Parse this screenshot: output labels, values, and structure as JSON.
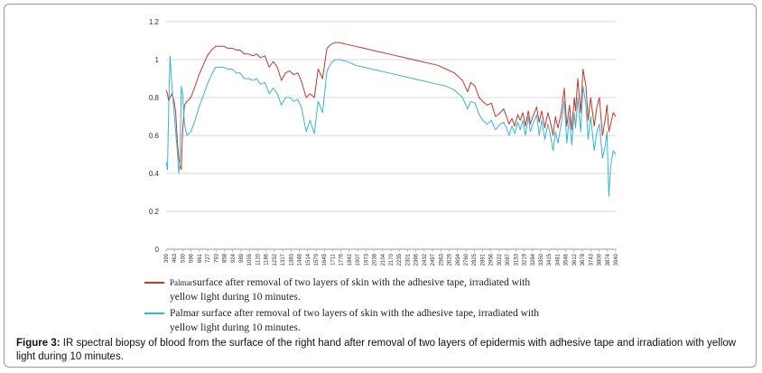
{
  "chart_data": {
    "type": "line",
    "title": "",
    "xlabel": "",
    "ylabel": "",
    "ylim": [
      0,
      1.2
    ],
    "yticks": [
      "0",
      "0.2",
      "0.4",
      "0.6",
      "0.8",
      "1",
      "1.2"
    ],
    "xticks": [
      "399",
      "463",
      "530",
      "596",
      "661",
      "727",
      "793",
      "858",
      "924",
      "989",
      "1055",
      "1120",
      "1186",
      "1252",
      "1317",
      "1383",
      "1448",
      "1514",
      "1579",
      "1645",
      "1711",
      "1776",
      "1842",
      "1907",
      "1973",
      "2038",
      "2104",
      "2170",
      "2235",
      "2301",
      "2366",
      "2432",
      "2497",
      "2563",
      "2629",
      "2694",
      "2760",
      "2825",
      "2891",
      "2956",
      "3022",
      "3087",
      "3153",
      "3219",
      "3284",
      "3350",
      "3415",
      "3481",
      "3546",
      "3612",
      "3678",
      "3743",
      "3809",
      "3874",
      "3940"
    ],
    "series": [
      {
        "name": "Palmar surface after removal of two layers of skin with the adhesive tape, irradiated with yellow light during 10 minutes.",
        "color": "#c0392b",
        "x": [
          399,
          410,
          420,
          430,
          445,
          463,
          475,
          490,
          500,
          510,
          520,
          530,
          545,
          565,
          596,
          630,
          661,
          700,
          727,
          760,
          793,
          830,
          858,
          890,
          924,
          960,
          989,
          1020,
          1055,
          1090,
          1120,
          1150,
          1186,
          1220,
          1252,
          1285,
          1317,
          1350,
          1383,
          1415,
          1448,
          1480,
          1514,
          1545,
          1579,
          1610,
          1645,
          1680,
          1711,
          1745,
          1776,
          1842,
          1907,
          1973,
          2038,
          2104,
          2170,
          2235,
          2301,
          2366,
          2432,
          2497,
          2563,
          2629,
          2694,
          2760,
          2800,
          2825,
          2860,
          2891,
          2920,
          2956,
          2990,
          3022,
          3060,
          3087,
          3110,
          3130,
          3153,
          3175,
          3200,
          3219,
          3240,
          3260,
          3284,
          3300,
          3320,
          3350,
          3370,
          3390,
          3415,
          3440,
          3460,
          3481,
          3500,
          3520,
          3546,
          3570,
          3590,
          3612,
          3630,
          3650,
          3660,
          3678,
          3700,
          3720,
          3743,
          3760,
          3780,
          3809,
          3830,
          3850,
          3874,
          3895,
          3910,
          3925,
          3940,
          3960,
          3980
        ],
        "values": [
          0.84,
          0.82,
          0.78,
          0.8,
          0.82,
          0.78,
          0.72,
          0.55,
          0.48,
          0.44,
          0.42,
          0.62,
          0.76,
          0.78,
          0.8,
          0.86,
          0.92,
          0.98,
          1.02,
          1.05,
          1.07,
          1.07,
          1.07,
          1.06,
          1.06,
          1.05,
          1.05,
          1.03,
          1.03,
          1.02,
          1.03,
          1.01,
          1.02,
          0.96,
          0.99,
          0.96,
          0.89,
          0.93,
          0.94,
          0.92,
          0.93,
          0.88,
          0.8,
          0.82,
          0.8,
          0.95,
          0.9,
          1.06,
          1.08,
          1.09,
          1.09,
          1.08,
          1.07,
          1.06,
          1.05,
          1.04,
          1.03,
          1.02,
          1.01,
          1.0,
          0.99,
          0.98,
          0.97,
          0.95,
          0.93,
          0.89,
          0.83,
          0.88,
          0.86,
          0.8,
          0.78,
          0.76,
          0.77,
          0.7,
          0.72,
          0.74,
          0.7,
          0.66,
          0.69,
          0.65,
          0.71,
          0.68,
          0.72,
          0.65,
          0.73,
          0.66,
          0.7,
          0.75,
          0.67,
          0.73,
          0.64,
          0.72,
          0.67,
          0.6,
          0.7,
          0.64,
          0.72,
          0.85,
          0.65,
          0.76,
          0.63,
          0.8,
          0.73,
          0.9,
          0.72,
          0.95,
          0.86,
          0.68,
          0.8,
          0.65,
          0.75,
          0.8,
          0.6,
          0.68,
          0.76,
          0.62,
          0.66,
          0.72,
          0.7
        ]
      },
      {
        "name": "Palmar surface after removal of two layers of skin with the adhesive tape, irradiated with yellow light during 10 minutes.",
        "color": "#3ab4d4",
        "x": [
          399,
          410,
          420,
          430,
          445,
          463,
          475,
          490,
          500,
          510,
          520,
          530,
          545,
          565,
          596,
          630,
          661,
          700,
          727,
          760,
          793,
          830,
          858,
          890,
          924,
          960,
          989,
          1020,
          1055,
          1090,
          1120,
          1150,
          1186,
          1220,
          1252,
          1285,
          1317,
          1350,
          1383,
          1415,
          1448,
          1480,
          1514,
          1545,
          1579,
          1610,
          1645,
          1680,
          1711,
          1745,
          1776,
          1842,
          1907,
          1973,
          2038,
          2104,
          2170,
          2235,
          2301,
          2366,
          2432,
          2497,
          2563,
          2629,
          2694,
          2760,
          2800,
          2825,
          2860,
          2891,
          2920,
          2956,
          2990,
          3022,
          3060,
          3087,
          3110,
          3130,
          3153,
          3175,
          3200,
          3219,
          3240,
          3260,
          3284,
          3300,
          3320,
          3350,
          3370,
          3390,
          3415,
          3440,
          3460,
          3481,
          3500,
          3520,
          3546,
          3570,
          3590,
          3612,
          3630,
          3650,
          3660,
          3678,
          3700,
          3720,
          3743,
          3760,
          3780,
          3809,
          3830,
          3850,
          3874,
          3895,
          3910,
          3925,
          3940,
          3960,
          3980
        ],
        "values": [
          0.46,
          0.42,
          0.76,
          1.02,
          0.86,
          0.72,
          0.62,
          0.5,
          0.4,
          0.46,
          0.86,
          0.82,
          0.66,
          0.6,
          0.62,
          0.68,
          0.75,
          0.82,
          0.87,
          0.92,
          0.96,
          0.96,
          0.96,
          0.95,
          0.95,
          0.93,
          0.93,
          0.9,
          0.9,
          0.89,
          0.9,
          0.87,
          0.88,
          0.82,
          0.85,
          0.82,
          0.76,
          0.8,
          0.8,
          0.78,
          0.79,
          0.74,
          0.62,
          0.68,
          0.61,
          0.78,
          0.72,
          0.94,
          0.98,
          1.0,
          1.0,
          0.99,
          0.97,
          0.96,
          0.95,
          0.94,
          0.93,
          0.92,
          0.91,
          0.9,
          0.89,
          0.88,
          0.87,
          0.86,
          0.84,
          0.8,
          0.74,
          0.78,
          0.77,
          0.71,
          0.68,
          0.66,
          0.68,
          0.63,
          0.66,
          0.67,
          0.64,
          0.6,
          0.65,
          0.61,
          0.67,
          0.63,
          0.68,
          0.6,
          0.7,
          0.62,
          0.66,
          0.71,
          0.6,
          0.68,
          0.58,
          0.66,
          0.6,
          0.52,
          0.62,
          0.56,
          0.66,
          0.78,
          0.56,
          0.7,
          0.55,
          0.72,
          0.64,
          0.8,
          0.62,
          0.86,
          0.76,
          0.58,
          0.7,
          0.52,
          0.62,
          0.66,
          0.48,
          0.54,
          0.62,
          0.28,
          0.44,
          0.52,
          0.5
        ]
      }
    ]
  },
  "legend": {
    "red_prefix": "Palmar",
    "red_text": "surface after removal of two layers of skin with the adhesive tape, irradiated with yellow light during 10 minutes.",
    "blue_text": "Palmar surface after removal of two layers of skin with the adhesive tape, irradiated with yellow light during 10 minutes."
  },
  "caption": {
    "label": "Figure 3:",
    "text": " IR spectral biopsy of blood from the surface of the right hand after removal of two layers of epidermis with adhesive tape and irradiation with yellow light during 10 minutes."
  }
}
